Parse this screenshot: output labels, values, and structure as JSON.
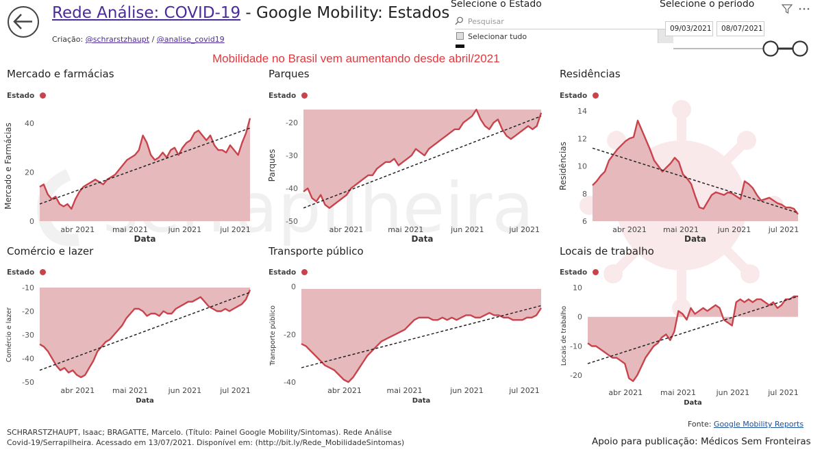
{
  "header": {
    "title_link": "Rede Análise: COVID-19",
    "title_rest": " - Google Mobility: Estados",
    "credits_prefix": "Criação: ",
    "credit_1": "@schrarstzhaupt",
    "credit_sep": " / ",
    "credit_2": "@analise_covid19",
    "headline": "Mobilidade no Brasil vem aumentando desde abril/2021"
  },
  "filters": {
    "state_title": "Selecione o Estado",
    "search_placeholder": "Pesquisar",
    "select_all": "Selecionar tudo",
    "period_title": "Selecione o período",
    "date_start": "09/03/2021",
    "date_end": "08/07/2021"
  },
  "icons": {
    "back": "arrow-left-circle-icon",
    "search": "search-icon",
    "filter": "filter-icon",
    "more": "more-options-icon"
  },
  "colors": {
    "area_fill": "#e6b9bd",
    "line": "#c8434b",
    "trend": "#222222",
    "headline": "#e0383c"
  },
  "legend_label": "Estado",
  "x_axis_label": "Data",
  "x_ticks": [
    "abr 2021",
    "mai 2021",
    "jun 2021",
    "jul 2021"
  ],
  "chart_data": [
    {
      "id": "mercado",
      "type": "area",
      "title": "Mercado e farmácias",
      "ylabel": "Mercado e Farmácias",
      "ylim": [
        0,
        45
      ],
      "yticks": [
        0,
        20,
        40
      ],
      "values": [
        14,
        15,
        11,
        9,
        10,
        7,
        6,
        7,
        5,
        9,
        12,
        14,
        15,
        16,
        17,
        16,
        15,
        17,
        18,
        19,
        21,
        23,
        25,
        26,
        27,
        29,
        35,
        32,
        27,
        25,
        26,
        28,
        26,
        29,
        30,
        27,
        30,
        32,
        33,
        36,
        37,
        35,
        33,
        35,
        31,
        29,
        29,
        28,
        31,
        29,
        27,
        32,
        36,
        42
      ],
      "trend": [
        7,
        38
      ]
    },
    {
      "id": "parques",
      "type": "area",
      "title": "Parques",
      "ylabel": "Parques",
      "ylim": [
        -50,
        -16
      ],
      "yticks": [
        -50,
        -40,
        -30,
        -20
      ],
      "values": [
        -41,
        -40,
        -43,
        -44,
        -42,
        -45,
        -46,
        -45,
        -44,
        -43,
        -42,
        -40,
        -39,
        -38,
        -37,
        -36,
        -36,
        -34,
        -33,
        -32,
        -32,
        -31,
        -33,
        -32,
        -31,
        -30,
        -28,
        -29,
        -30,
        -28,
        -27,
        -26,
        -25,
        -24,
        -23,
        -22,
        -22,
        -20,
        -19,
        -18,
        -16,
        -19,
        -21,
        -22,
        -20,
        -19,
        -22,
        -24,
        -25,
        -24,
        -23,
        -22,
        -21,
        -22,
        -21,
        -17
      ],
      "trend": [
        -46,
        -18
      ]
    },
    {
      "id": "residencias",
      "type": "area",
      "title": "Residências",
      "ylabel": "Residências",
      "ylim": [
        6,
        14
      ],
      "yticks": [
        6,
        8,
        10,
        12,
        14
      ],
      "values": [
        8.6,
        8.9,
        9.3,
        9.6,
        10.4,
        10.8,
        11.2,
        11.5,
        11.8,
        12.0,
        12.1,
        13.3,
        12.6,
        11.9,
        11.2,
        10.4,
        10.0,
        9.6,
        9.9,
        10.2,
        10.6,
        10.3,
        9.4,
        9.1,
        8.7,
        7.8,
        7.0,
        6.9,
        7.4,
        7.9,
        8.1,
        8.0,
        7.9,
        8.1,
        8.0,
        7.8,
        7.6,
        8.9,
        8.7,
        8.4,
        7.9,
        7.5,
        7.6,
        7.7,
        7.5,
        7.3,
        7.2,
        7.0,
        7.0,
        6.9,
        6.5
      ],
      "trend": [
        11.3,
        6.6
      ]
    },
    {
      "id": "comercio",
      "type": "area",
      "title": "Comércio e lazer",
      "ylabel": "Comércio e lazer",
      "ylim": [
        -50,
        -10
      ],
      "yticks": [
        -50,
        -40,
        -30,
        -20,
        -10
      ],
      "values": [
        -34,
        -35,
        -37,
        -40,
        -43,
        -45,
        -44,
        -46,
        -45,
        -47,
        -48,
        -47,
        -44,
        -41,
        -37,
        -35,
        -33,
        -32,
        -30,
        -28,
        -26,
        -23,
        -21,
        -19,
        -19,
        -20,
        -22,
        -21,
        -21,
        -22,
        -20,
        -21,
        -21,
        -19,
        -18,
        -17,
        -16,
        -16,
        -15,
        -14,
        -16,
        -18,
        -19,
        -20,
        -20,
        -19,
        -20,
        -19,
        -18,
        -17,
        -15,
        -11
      ],
      "trend": [
        -45,
        -12
      ]
    },
    {
      "id": "transporte",
      "type": "area",
      "title": "Transporte público",
      "ylabel": "Transporte público",
      "ylim": [
        -40,
        -1
      ],
      "yticks": [
        -40,
        -20,
        0
      ],
      "values": [
        -24,
        -25,
        -27,
        -29,
        -31,
        -33,
        -34,
        -35,
        -37,
        -39,
        -40,
        -38,
        -35,
        -32,
        -29,
        -27,
        -25,
        -23,
        -22,
        -21,
        -20,
        -19,
        -18,
        -16,
        -14,
        -13,
        -13,
        -13,
        -14,
        -14,
        -13,
        -14,
        -13,
        -14,
        -13,
        -12,
        -12,
        -13,
        -13,
        -12,
        -11,
        -12,
        -12,
        -13,
        -13,
        -14,
        -14,
        -14,
        -13,
        -13,
        -12,
        -9
      ],
      "trend": [
        -34,
        -8
      ]
    },
    {
      "id": "trabalho",
      "type": "area",
      "title": "Locais de trabalho",
      "ylabel": "Locais de trabalho",
      "ylim": [
        -23,
        10
      ],
      "yticks": [
        -20,
        -10,
        0,
        10
      ],
      "values": [
        -9,
        -10,
        -10,
        -11,
        -12,
        -13,
        -14,
        -14,
        -15,
        -16,
        -21,
        -22,
        -20,
        -17,
        -14,
        -12,
        -10,
        -9,
        -7,
        -6,
        -8,
        -5,
        2,
        1,
        -1,
        3,
        1,
        2,
        3,
        2,
        3,
        4,
        3,
        -1,
        -2,
        -3,
        5,
        6,
        5,
        6,
        5,
        6,
        6,
        5,
        4,
        5,
        3,
        4,
        6,
        6,
        7,
        7
      ],
      "trend": [
        -16,
        7
      ]
    }
  ],
  "footer": {
    "citation": "SCHRARSTZHAUPT, Isaac; BRAGATTE, Marcelo. (Título: Painel Google Mobility/Sintomas). Rede Análise Covid-19/Serrapilheira. Acessado em 13/07/2021. Disponível em: (http://bit.ly/Rede_MobilidadeSintomas)",
    "source_prefix": "Fonte: ",
    "source_link": "Google Mobility Reports",
    "support": "Apoio para publicação: Médicos Sem Fronteiras"
  }
}
